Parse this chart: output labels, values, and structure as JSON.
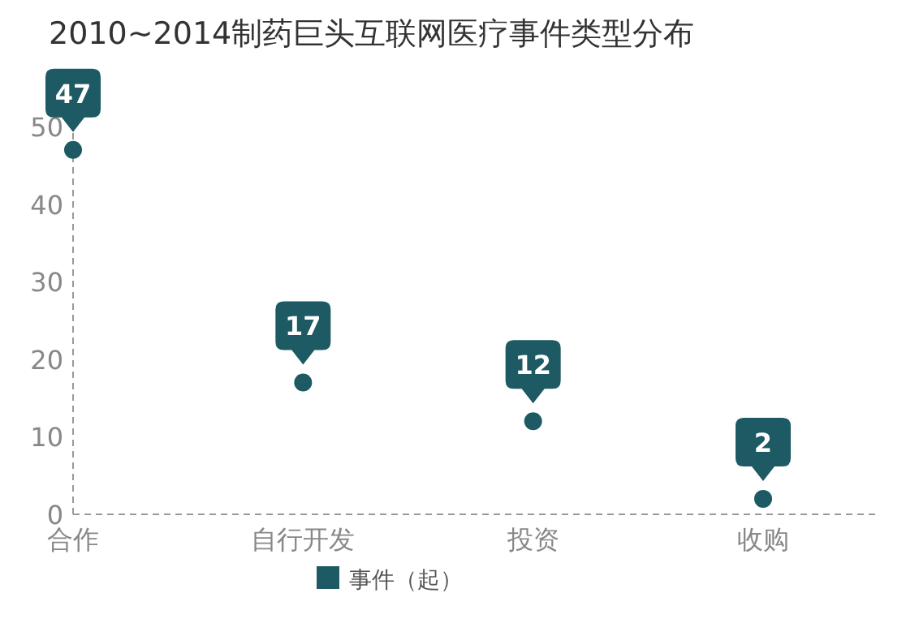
{
  "chart_data": {
    "type": "scatter",
    "title": "2010~2014制药巨头互联网医疗事件类型分布",
    "categories": [
      "合作",
      "自行开发",
      "投资",
      "收购"
    ],
    "series": [
      {
        "name": "事件（起）",
        "color": "#1e5a63",
        "values": [
          47,
          17,
          12,
          2
        ]
      }
    ],
    "ylim": [
      0,
      50
    ],
    "yticks": [
      0,
      10,
      20,
      30,
      40,
      50
    ],
    "data_labels": true,
    "marker": "circle",
    "legend": "bottom",
    "grid": false
  }
}
